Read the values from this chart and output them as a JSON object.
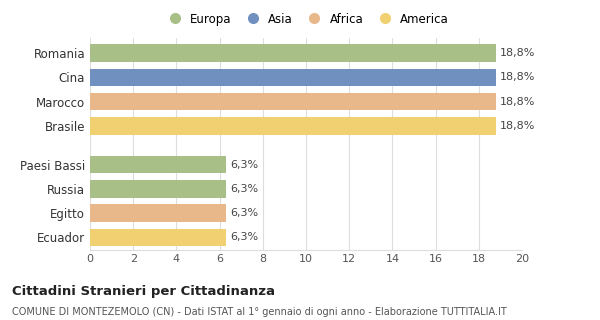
{
  "categories": [
    "Ecuador",
    "Egitto",
    "Russia",
    "Paesi Bassi",
    "Brasile",
    "Marocco",
    "Cina",
    "Romania"
  ],
  "values": [
    6.3,
    6.3,
    6.3,
    6.3,
    18.8,
    18.8,
    18.8,
    18.8
  ],
  "colors": [
    "#f0d070",
    "#e8b88a",
    "#a8c088",
    "#a8c088",
    "#f0d070",
    "#e8b88a",
    "#7090c0",
    "#a8c088"
  ],
  "labels": [
    "6,3%",
    "6,3%",
    "6,3%",
    "6,3%",
    "18,8%",
    "18,8%",
    "18,8%",
    "18,8%"
  ],
  "legend_labels": [
    "Europa",
    "Asia",
    "Africa",
    "America"
  ],
  "legend_colors": [
    "#a8c088",
    "#7090c0",
    "#e8b88a",
    "#f0d070"
  ],
  "title": "Cittadini Stranieri per Cittadinanza",
  "subtitle": "COMUNE DI MONTEZEMOLO (CN) - Dati ISTAT al 1° gennaio di ogni anno - Elaborazione TUTTITALIA.IT",
  "xlim": [
    0,
    20
  ],
  "xticks": [
    0,
    2,
    4,
    6,
    8,
    10,
    12,
    14,
    16,
    18,
    20
  ],
  "background_color": "#ffffff",
  "grid_color": "#dddddd"
}
